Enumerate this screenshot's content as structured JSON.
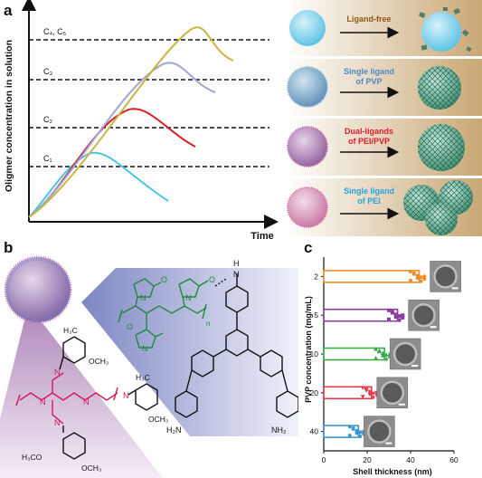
{
  "panels": {
    "a": "a",
    "b": "b",
    "c": "c"
  },
  "panel_a": {
    "xlabel": "Time",
    "ylabel": "Oligmer concentration in solution",
    "levels": [
      "C₁",
      "C₂",
      "C₃",
      "C₄, C₅"
    ],
    "rows": [
      {
        "label": "Ligand-free",
        "color": "#8a5a14"
      },
      {
        "label": "Single ligand of PVP",
        "color": "#4f86c6"
      },
      {
        "label": "Dual-ligands of PEI/PVP",
        "color": "#e0192a"
      },
      {
        "label": "Single ligand of PEI",
        "color": "#27a4de"
      }
    ],
    "curve_colors": [
      "#4bc3e6",
      "#d72028",
      "#9fa6d6",
      "#c9b641"
    ]
  },
  "panel_b": {
    "h2n": "H",
    "n_label": "N",
    "amine_left": "H₂N",
    "amine_right": "NH₂",
    "n_sub": "n",
    "methyl_label": "H₃C",
    "methoxy_label": "OCH₃",
    "h3co": "H₃CO"
  },
  "chart_data": {
    "type": "bar",
    "orientation": "horizontal",
    "categories": [
      "2",
      "5",
      "10",
      "20",
      "40"
    ],
    "values": [
      44,
      34,
      28,
      22,
      16
    ],
    "colors": [
      "#f08c2a",
      "#8a3fa0",
      "#3bab4a",
      "#e23a4a",
      "#3c95d2"
    ],
    "markers": [
      "circle",
      "square",
      "triangle-up",
      "triangle-down",
      "circle"
    ],
    "xlabel": "Shell thickness (nm)",
    "ylabel": "PVP concentration (mg/mL)",
    "xlim": [
      0,
      60
    ],
    "xticks": [
      "0",
      "20",
      "40",
      "60"
    ]
  }
}
